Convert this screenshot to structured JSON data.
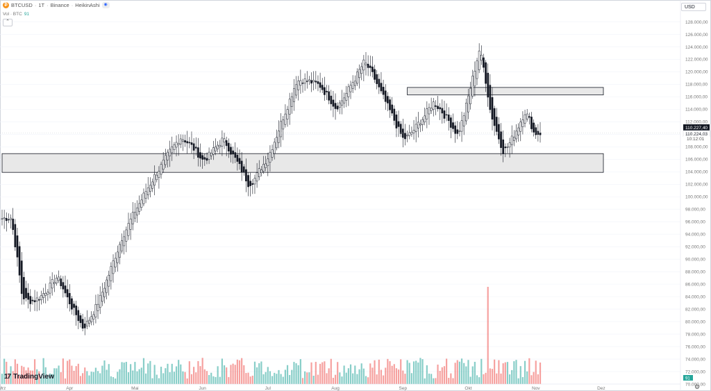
{
  "header": {
    "symbol": "BTCUSD",
    "interval": "1T",
    "exchange": "Binance",
    "chart_style": "HeikinAshi",
    "separator": "·",
    "btc_icon": "₿",
    "eye_icon": "◉"
  },
  "volume_indicator": {
    "label": "Vol · BTC",
    "value": "91"
  },
  "collapse_icon": "⌃",
  "currency": "USD",
  "price_tags": {
    "last_price": "110.227,40",
    "close_price": "110.224,03",
    "countdown": "10:12:01"
  },
  "volume_tag": "91",
  "brand": {
    "mark": "17",
    "name": "TradingView"
  },
  "settings_icon": "⚙",
  "colors": {
    "up": "#26a69a",
    "down": "#ef5350",
    "candle_up": "#ffffff",
    "candle_down": "#131722",
    "zone_fill": "#e8e8e8"
  },
  "chart_data": {
    "type": "candlestick",
    "chart_style": "HeikinAshi",
    "y_axis": {
      "ticks": [
        "128.000,00",
        "126.000,00",
        "124.000,00",
        "122.000,00",
        "120.000,00",
        "118.000,00",
        "116.000,00",
        "114.000,00",
        "112.000,00",
        "110.000,00",
        "108.000,00",
        "106.000,00",
        "104.000,00",
        "102.000,00",
        "100.000,00",
        "98.000,00",
        "96.000,00",
        "94.000,00",
        "92.000,00",
        "90.000,00",
        "88.000,00",
        "86.000,00",
        "84.000,00",
        "82.000,00",
        "80.000,00",
        "78.000,00",
        "76.000,00",
        "74.000,00",
        "72.000,00",
        "70.000,00"
      ],
      "range": [
        70000,
        129500
      ]
    },
    "x_axis": {
      "months": [
        "Mrz",
        "Apr",
        "Mai",
        "Jun",
        "Jul",
        "Aug",
        "Sep",
        "Okt",
        "Nov",
        "Dez"
      ],
      "range": [
        "2025-03-01",
        "2025-12-31"
      ]
    },
    "key_points": [
      {
        "date": "2025-03-01",
        "price": 96500
      },
      {
        "date": "2025-03-05",
        "price": 96800
      },
      {
        "date": "2025-03-10",
        "price": 82000
      },
      {
        "date": "2025-03-18",
        "price": 84000
      },
      {
        "date": "2025-03-26",
        "price": 87500
      },
      {
        "date": "2025-03-31",
        "price": 83000
      },
      {
        "date": "2025-04-07",
        "price": 78500
      },
      {
        "date": "2025-04-15",
        "price": 84500
      },
      {
        "date": "2025-04-25",
        "price": 94500
      },
      {
        "date": "2025-05-10",
        "price": 104000
      },
      {
        "date": "2025-05-22",
        "price": 110000
      },
      {
        "date": "2025-06-01",
        "price": 105500
      },
      {
        "date": "2025-06-10",
        "price": 109500
      },
      {
        "date": "2025-06-22",
        "price": 101500
      },
      {
        "date": "2025-07-01",
        "price": 107000
      },
      {
        "date": "2025-07-14",
        "price": 119500
      },
      {
        "date": "2025-07-25",
        "price": 117500
      },
      {
        "date": "2025-08-01",
        "price": 114000
      },
      {
        "date": "2025-08-14",
        "price": 122000
      },
      {
        "date": "2025-08-23",
        "price": 115000
      },
      {
        "date": "2025-09-01",
        "price": 108500
      },
      {
        "date": "2025-09-15",
        "price": 115500
      },
      {
        "date": "2025-09-26",
        "price": 109500
      },
      {
        "date": "2025-10-06",
        "price": 125000
      },
      {
        "date": "2025-10-11",
        "price": 112000
      },
      {
        "date": "2025-10-17",
        "price": 106500
      },
      {
        "date": "2025-10-27",
        "price": 114500
      },
      {
        "date": "2025-10-31",
        "price": 109500
      },
      {
        "date": "2025-11-03",
        "price": 110224
      }
    ],
    "zones": [
      {
        "type": "support",
        "low": 103900,
        "high": 106900,
        "from": "2025-03-01",
        "to": "2025-12-02"
      },
      {
        "type": "resistance",
        "low": 116300,
        "high": 117500,
        "from": "2025-09-03",
        "to": "2025-12-02"
      }
    ],
    "volume_spike": {
      "date": "2025-10-10",
      "note": "largest volume bar"
    },
    "last_price": 110227.4
  }
}
